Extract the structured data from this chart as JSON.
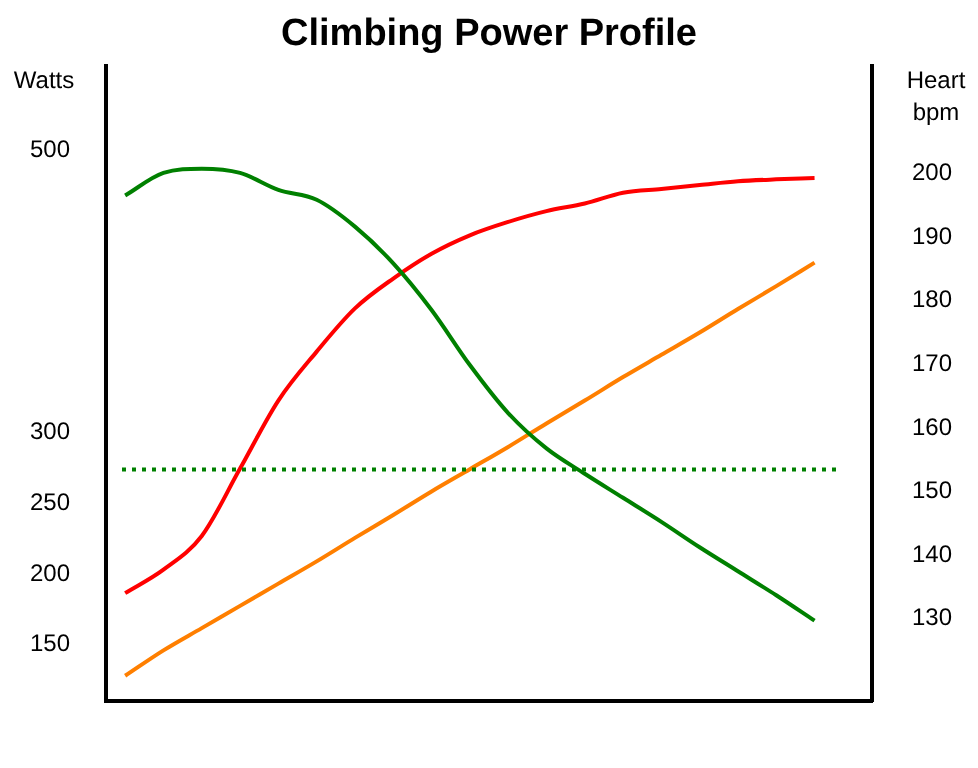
{
  "chart_data": {
    "type": "line",
    "title": "Climbing Power Profile",
    "ylabel": "Watts",
    "y2label": "Heart bpm",
    "categories": [
      null,
      null,
      null,
      null,
      null,
      null,
      null,
      null,
      null,
      null,
      null,
      null,
      null,
      null,
      null,
      null,
      null,
      null,
      null,
      null
    ],
    "series": [
      {
        "color": "#008000",
        "values": [
          468,
          484,
          487,
          484,
          472,
          465,
          446,
          420,
          387,
          348,
          314,
          289,
          271,
          254,
          237,
          219,
          202,
          185,
          167,
          null
        ]
      },
      {
        "color": "#ff0000",
        "axis": "y2",
        "values": [
          134,
          137.7,
          143,
          153.6,
          164.3,
          172,
          178.8,
          183.5,
          187.4,
          190.3,
          192.4,
          194.1,
          195.3,
          197,
          197.6,
          198.2,
          198.8,
          199.1,
          199.3,
          null
        ]
      },
      {
        "color": "#ff7f00",
        "axis": "y2",
        "values": [
          121,
          125,
          128.5,
          132,
          135.5,
          139,
          142.7,
          146.3,
          150,
          153.5,
          157,
          160.7,
          164.3,
          168,
          171.5,
          175,
          178.7,
          182.3,
          186,
          null
        ]
      }
    ],
    "ref_lines": [
      {
        "axis": "y",
        "value": 274,
        "color": "#008000",
        "line_style": "dotted"
      }
    ],
    "ylim": [
      110,
      560
    ],
    "yticks": [
      150,
      200,
      250,
      300,
      500
    ],
    "y2lim": [
      117,
      217
    ],
    "y2ticks": [
      130,
      140,
      150,
      160,
      170,
      180,
      190,
      200
    ],
    "grid": false,
    "legend": false,
    "marker": "none",
    "line_style": "solid"
  }
}
